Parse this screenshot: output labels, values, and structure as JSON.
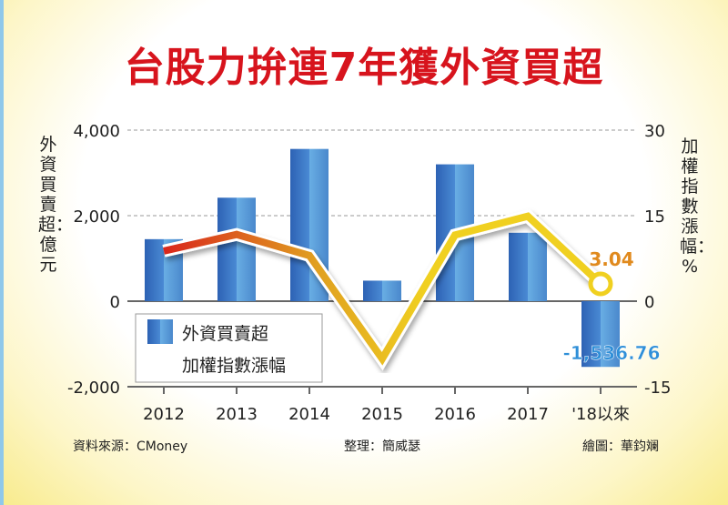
{
  "chart_data": {
    "type": "bar+line",
    "title": "台股力拚連7年獲外資買超",
    "categories": [
      "2012",
      "2013",
      "2014",
      "2015",
      "2016",
      "2017",
      "'18以來"
    ],
    "series": [
      {
        "name": "外資買賣超",
        "type": "bar",
        "axis": "left",
        "values": [
          1450,
          2420,
          3560,
          480,
          3200,
          1600,
          -1536.76
        ]
      },
      {
        "name": "加權指數漲幅",
        "type": "line",
        "axis": "right",
        "values": [
          8.8,
          11.7,
          8.0,
          -10.1,
          11.6,
          14.9,
          3.04
        ]
      }
    ],
    "ylabel_left": "外資買賣超：億元",
    "ylabel_right": "加權指數漲幅：%",
    "ylim_left": [
      -2000,
      4000
    ],
    "ylim_right": [
      -15,
      30
    ],
    "yticks_left": [
      "4,000",
      "2,000",
      "0",
      "-2,000"
    ],
    "yticks_right": [
      "30",
      "15",
      "0",
      "-15"
    ],
    "annotations": {
      "bar_last": "-1,536.76",
      "line_last": "3.04"
    },
    "legend": "bottom-left",
    "grid": true
  },
  "footer": {
    "source": "資料來源：CMoney",
    "editor": "整理：簡威瑟",
    "graphic": "繪圖：華鈞斓"
  },
  "colors": {
    "title": "#d7141d",
    "bar": "#3f7fc8",
    "line_start": "#d9261c",
    "line_end": "#f0d020",
    "annot_line": "#e08a1e",
    "annot_bar": "#2f8fd8"
  }
}
